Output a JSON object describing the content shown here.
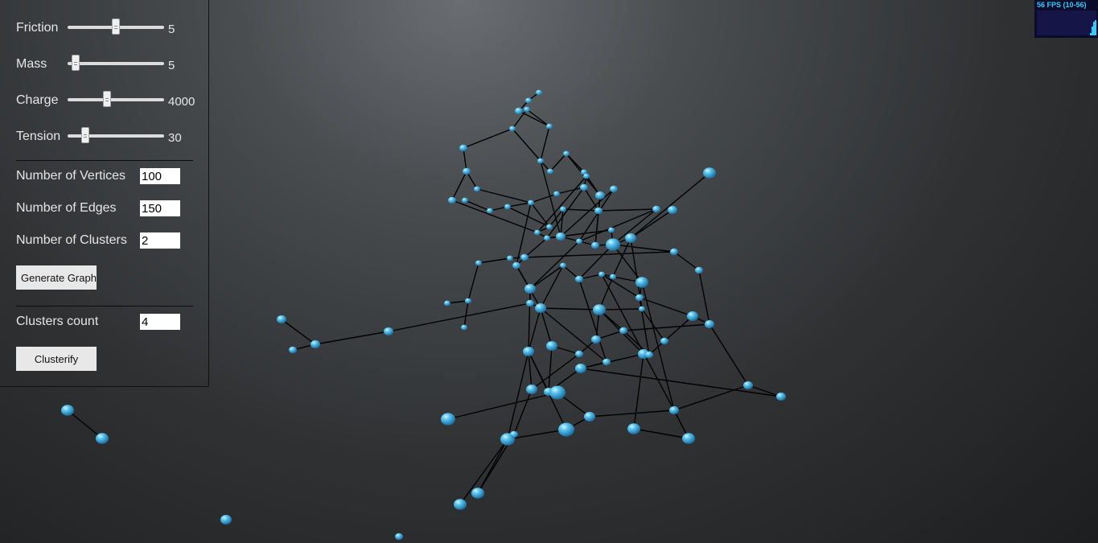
{
  "controls": {
    "sliders": [
      {
        "label": "Friction",
        "value": "5",
        "position": 0.5
      },
      {
        "label": "Mass",
        "value": "5",
        "position": 0.08
      },
      {
        "label": "Charge",
        "value": "4000",
        "position": 0.41
      },
      {
        "label": "Tension",
        "value": "30",
        "position": 0.18
      }
    ],
    "fields": [
      {
        "label": "Number of Vertices",
        "value": "100"
      },
      {
        "label": "Number of Edges",
        "value": "150"
      },
      {
        "label": "Number of Clusters",
        "value": "2"
      }
    ],
    "generate_label": "Generate Graph",
    "clusters_count": {
      "label": "Clusters count",
      "value": "4"
    },
    "clusterify_label": "Clusterify"
  },
  "fps": {
    "text": "56 FPS (10-56)",
    "history": [
      0.1,
      0.35,
      0.55,
      0.6
    ]
  },
  "colors": {
    "node": "#4ab8e8",
    "node_highlight": "#bfeaff",
    "edge": "#000000",
    "fps_text": "#33ccff",
    "fps_bg": "#0a0a2a"
  }
}
